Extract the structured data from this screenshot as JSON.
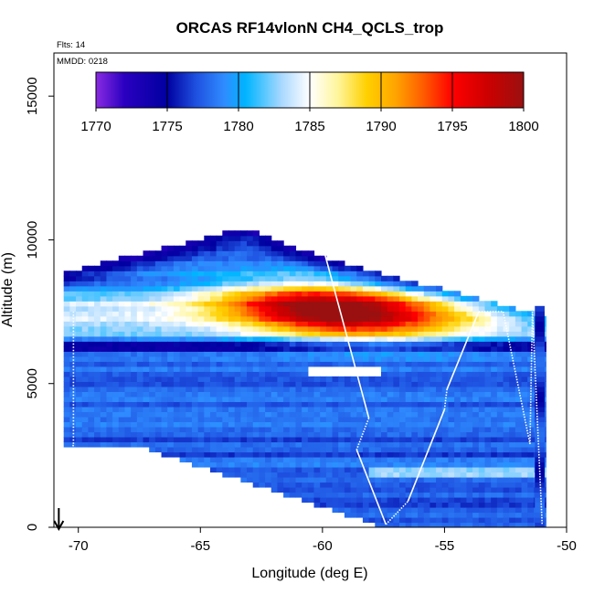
{
  "chart_data": {
    "type": "heatmap",
    "title": "ORCAS RF14vlonN CH4_QCLS_trop",
    "flights_note": "Flts: 14",
    "date_note": "MMDD: 0218",
    "xlabel": "Longitude (deg E)",
    "ylabel": "Altitude (m)",
    "xlim": [
      -71,
      -50
    ],
    "ylim": [
      0,
      16500
    ],
    "x_ticks": [
      -70,
      -65,
      -60,
      -55,
      -50
    ],
    "x_tick_labels": [
      "-70",
      "-65",
      "-60",
      "-55",
      "-50"
    ],
    "y_ticks": [
      0,
      5000,
      10000,
      15000
    ],
    "y_tick_labels": [
      "0",
      "5000",
      "10000",
      "15000"
    ],
    "colorbar": {
      "min": 1770,
      "max": 1800,
      "ticks": [
        1770,
        1775,
        1780,
        1785,
        1790,
        1795,
        1800
      ],
      "tick_labels": [
        "1770",
        "1775",
        "1780",
        "1785",
        "1790",
        "1795",
        "1800"
      ],
      "stops": [
        {
          "value": 1770,
          "color": "#8a2be2"
        },
        {
          "value": 1772,
          "color": "#2a00c0"
        },
        {
          "value": 1775,
          "color": "#0000a0"
        },
        {
          "value": 1777,
          "color": "#1e50e0"
        },
        {
          "value": 1779,
          "color": "#2f8cff"
        },
        {
          "value": 1780.5,
          "color": "#00b4ff"
        },
        {
          "value": 1783,
          "color": "#a8d8ff"
        },
        {
          "value": 1785,
          "color": "#ffffff"
        },
        {
          "value": 1787,
          "color": "#fff59a"
        },
        {
          "value": 1789,
          "color": "#ffd000"
        },
        {
          "value": 1791,
          "color": "#ffa500"
        },
        {
          "value": 1793,
          "color": "#ff5a00"
        },
        {
          "value": 1795,
          "color": "#ff0000"
        },
        {
          "value": 1797.5,
          "color": "#cc0000"
        },
        {
          "value": 1800,
          "color": "#9a1010"
        }
      ]
    },
    "field_description": {
      "background_ch4": 1777.5,
      "upper_plume": {
        "center_lon": -59.5,
        "center_alt": 7600,
        "peak": 1796
      },
      "data_columns": [
        {
          "lon_min": -70.5,
          "lon_max": -51.0,
          "alt_min": 0,
          "alt_max": 9500
        }
      ]
    },
    "flight_track": [
      {
        "lon": -70.8,
        "lat_label": "start",
        "alt": 0
      },
      {
        "lon": -70.2,
        "alt": 2900
      },
      {
        "lon": -70.2,
        "alt": 7500
      },
      {
        "lon": -59.9,
        "alt": 9500
      },
      {
        "lon": -58.1,
        "alt": 3800
      },
      {
        "lon": -58.6,
        "alt": 2700
      },
      {
        "lon": -57.4,
        "alt": 100
      },
      {
        "lon": -56.5,
        "alt": 900
      },
      {
        "lon": -55.0,
        "alt": 4100
      },
      {
        "lon": -54.9,
        "alt": 4800
      },
      {
        "lon": -53.6,
        "alt": 7500
      },
      {
        "lon": -52.6,
        "alt": 7500
      },
      {
        "lon": -51.5,
        "alt": 2900
      },
      {
        "lon": -51.4,
        "alt": 7500
      },
      {
        "lon": -51.0,
        "alt": 100
      }
    ],
    "start_marker": {
      "lon": -70.8,
      "alt": 600
    }
  }
}
